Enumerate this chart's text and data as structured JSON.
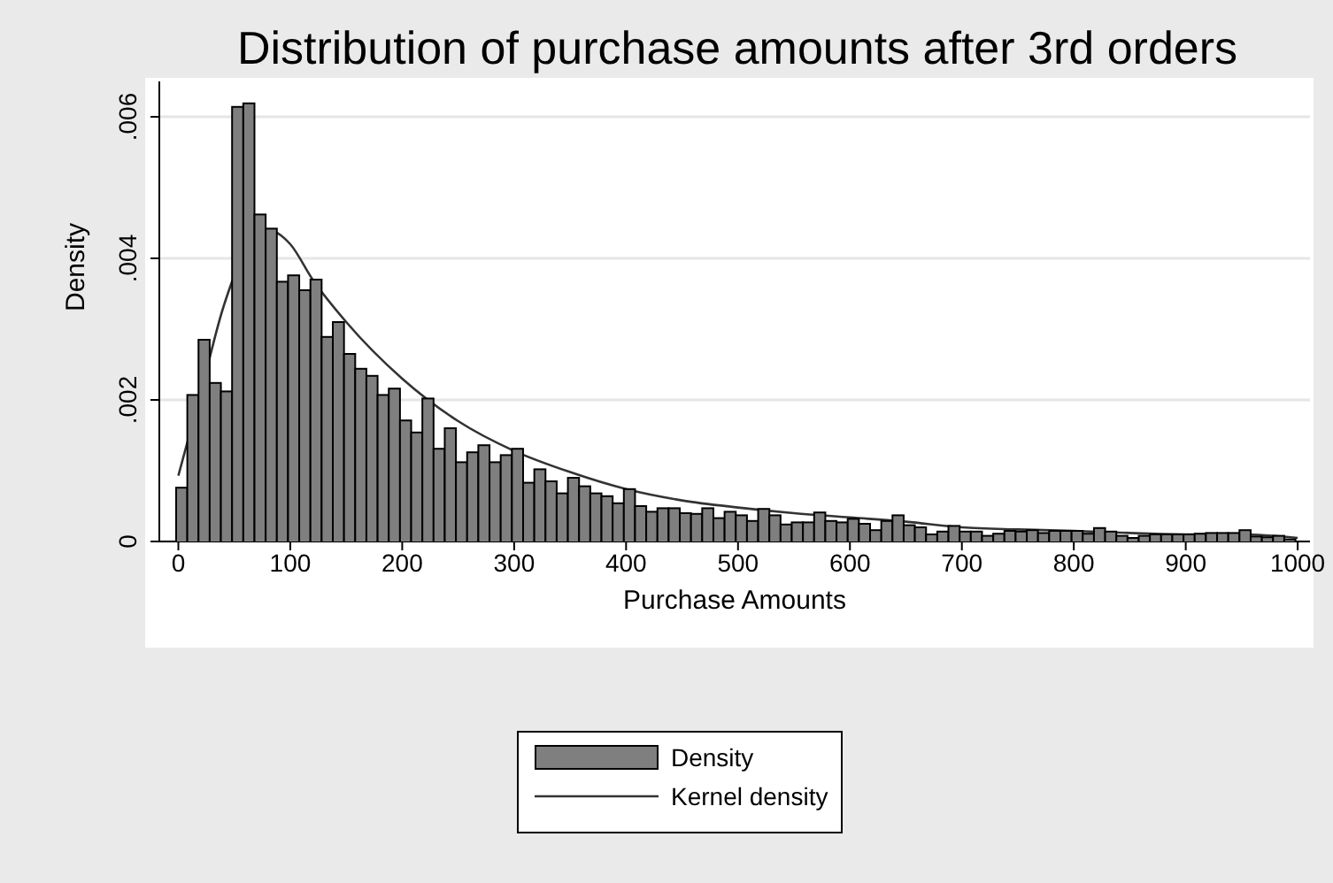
{
  "chart_data": {
    "type": "histogram",
    "title": "Distribution of purchase amounts after 3rd orders",
    "xlabel": "Purchase Amounts",
    "ylabel": "Density",
    "bins": [
      -2,
      8,
      18,
      28,
      38,
      48,
      58,
      68,
      78,
      88,
      98,
      108,
      118,
      128,
      138,
      148,
      158,
      168,
      178,
      188,
      198,
      208,
      218,
      228,
      238,
      248,
      258,
      268,
      278,
      288,
      298,
      308,
      318,
      328,
      338,
      348,
      358,
      368,
      378,
      388,
      398,
      408,
      418,
      428,
      438,
      448,
      458,
      468,
      478,
      488,
      498,
      508,
      518,
      528,
      538,
      548,
      558,
      568,
      578,
      588,
      598,
      608,
      618,
      628,
      638,
      648,
      658,
      668,
      678,
      688,
      698,
      708,
      718,
      728,
      738,
      748,
      758,
      768,
      778,
      788,
      798,
      808,
      818,
      828,
      838,
      848,
      858,
      868,
      878,
      888,
      898,
      908,
      918,
      928,
      938,
      948,
      958,
      968,
      978,
      988,
      998
    ],
    "series": [
      {
        "name": "Density",
        "color": "#7f7f7f",
        "values": [
          0.00076,
          0.00207,
          0.00285,
          0.00224,
          0.00212,
          0.00614,
          0.00619,
          0.00462,
          0.00442,
          0.00367,
          0.00376,
          0.00355,
          0.0037,
          0.00289,
          0.0031,
          0.00265,
          0.00244,
          0.00234,
          0.00207,
          0.00216,
          0.00171,
          0.00154,
          0.00202,
          0.00131,
          0.0016,
          0.00112,
          0.00126,
          0.00136,
          0.00112,
          0.00122,
          0.00131,
          0.00083,
          0.00102,
          0.00085,
          0.00068,
          0.0009,
          0.00078,
          0.00068,
          0.00064,
          0.00054,
          0.00074,
          0.0005,
          0.00042,
          0.00047,
          0.00047,
          0.0004,
          0.00039,
          0.00047,
          0.00033,
          0.00042,
          0.00037,
          0.00029,
          0.00046,
          0.00037,
          0.00024,
          0.00027,
          0.00027,
          0.00041,
          0.00029,
          0.00027,
          0.00032,
          0.00025,
          0.00016,
          0.00029,
          0.00037,
          0.00023,
          0.0002,
          0.0001,
          0.00014,
          0.00022,
          0.00014,
          0.00014,
          8e-05,
          0.00011,
          0.00015,
          0.00014,
          0.00016,
          0.00012,
          0.00015,
          0.00015,
          0.00015,
          0.00011,
          0.00019,
          0.00014,
          8e-05,
          5e-05,
          8e-05,
          0.0001,
          0.0001,
          0.0001,
          0.0001,
          0.00011,
          0.00012,
          0.00012,
          0.00012,
          0.00016,
          7e-05,
          6e-05,
          8e-05,
          3e-05
        ]
      },
      {
        "name": "Kernel density",
        "type": "line",
        "color": "#333333",
        "x": [
          0,
          20,
          40,
          60,
          80,
          100,
          120,
          150,
          200,
          250,
          300,
          350,
          400,
          450,
          500,
          550,
          600,
          650,
          700,
          750,
          800,
          850,
          900,
          950,
          1000
        ],
        "values": [
          0.00093,
          0.0021,
          0.0033,
          0.0041,
          0.0044,
          0.0042,
          0.0037,
          0.0031,
          0.0023,
          0.0017,
          0.00128,
          0.00098,
          0.00074,
          0.00058,
          0.00048,
          0.0004,
          0.00034,
          0.00028,
          0.0002,
          0.00017,
          0.00015,
          0.00012,
          0.0001,
          0.0001,
          5e-05
        ]
      }
    ],
    "xlim": [
      -17,
      1011
    ],
    "xticks": [
      0,
      100,
      200,
      300,
      400,
      500,
      600,
      700,
      800,
      900,
      1000
    ],
    "ylim": [
      0,
      0.0065
    ],
    "yticks": [
      0,
      {
        "value": 0.002,
        "label": ".002"
      },
      {
        "value": 0.004,
        "label": ".004"
      },
      {
        "value": 0.006,
        "label": ".006"
      }
    ],
    "grid": "y",
    "legend": "bottom"
  }
}
